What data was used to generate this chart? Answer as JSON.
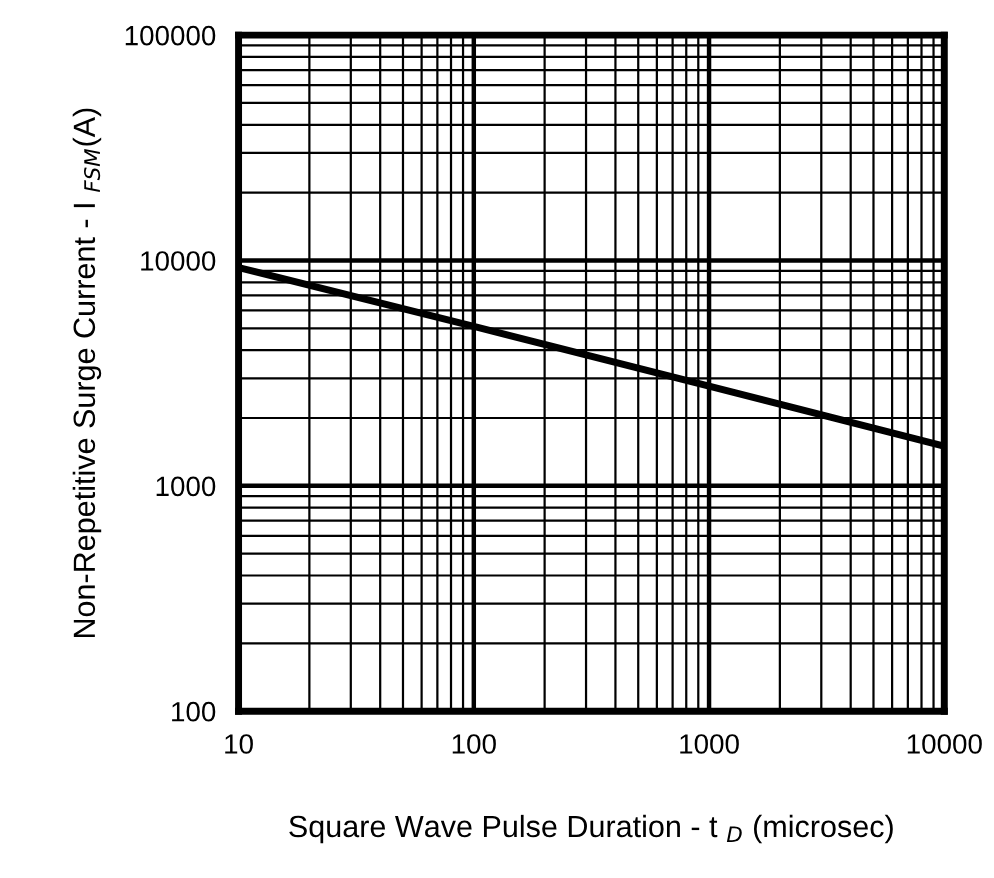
{
  "chart_data": {
    "type": "line",
    "xlabel": "Square Wave Pulse Duration - t $_{D}$ (microsec)",
    "ylabel": "Non-Repetitive Surge Current - I $_{FSM}$(A)",
    "x": [
      10,
      100,
      1000,
      10000
    ],
    "series": [
      {
        "color": "#000000",
        "values": [
          9300,
          5100,
          2770,
          1500
        ]
      }
    ],
    "log": "xy",
    "xlim": [
      10,
      10000
    ],
    "ylim": [
      100,
      100000
    ],
    "xticks": [
      10,
      100,
      1000,
      10000
    ],
    "yticks": [
      100,
      1000,
      10000,
      100000
    ],
    "grid": true,
    "marker": "none",
    "line_style": "solid"
  }
}
